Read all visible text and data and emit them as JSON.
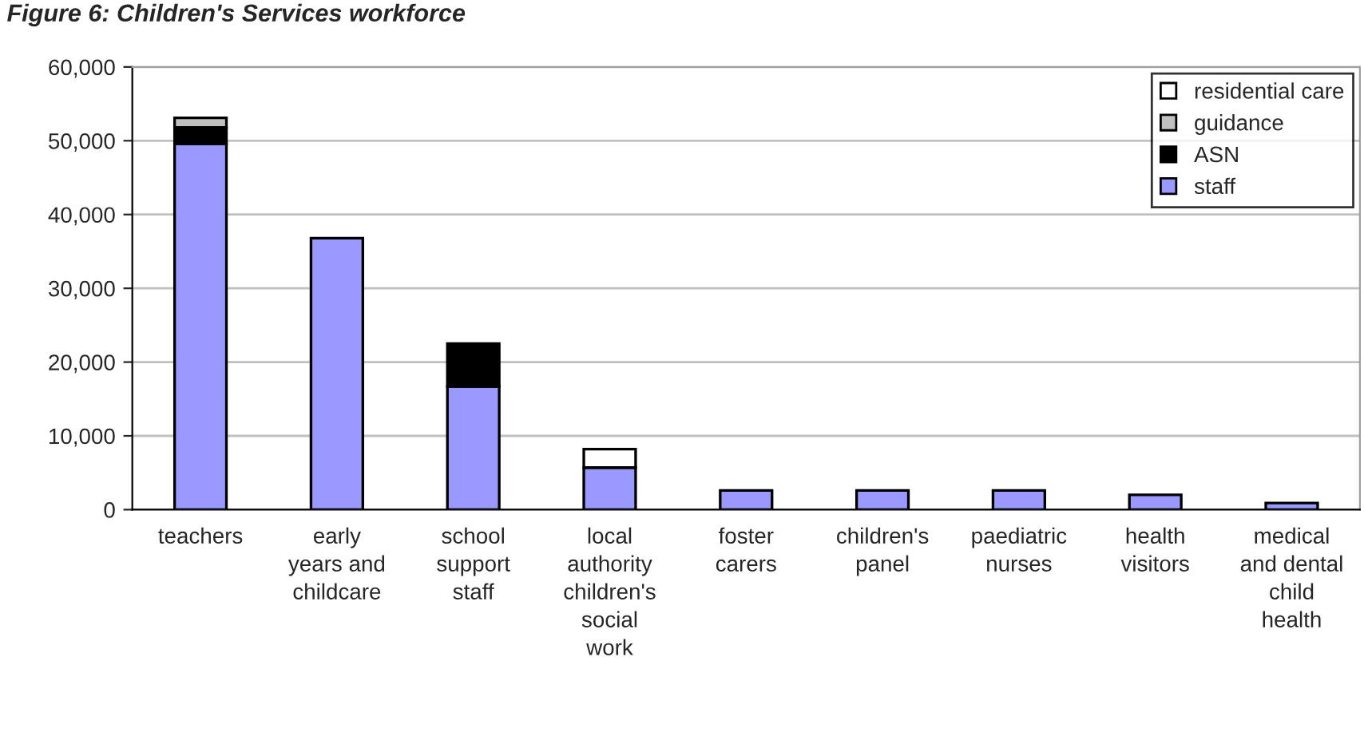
{
  "chart_data": {
    "type": "bar",
    "title": "Figure 6: Children's Services workforce",
    "categories": [
      "teachers",
      "early\nyears and\nchildcare",
      "school\nsupport\nstaff",
      "local\nauthority\nchildren's\nsocial\nwork",
      "foster\ncarers",
      "children's\npanel",
      "paediatric\nnurses",
      "health\nvisitors",
      "medical\nand dental\nchild\nhealth"
    ],
    "stacked": true,
    "series": [
      {
        "name": "staff",
        "color": "#9999ff",
        "values": [
          49600,
          36800,
          16700,
          5700,
          2600,
          2600,
          2600,
          2000,
          900
        ]
      },
      {
        "name": "ASN",
        "color": "#000000",
        "values": [
          2200,
          null,
          5800,
          null,
          null,
          null,
          null,
          null,
          null
        ]
      },
      {
        "name": "guidance",
        "color": "#c0c0c0",
        "values": [
          1300,
          null,
          null,
          null,
          null,
          null,
          null,
          null,
          null
        ]
      },
      {
        "name": "residential care",
        "color": "#ffffff",
        "values": [
          null,
          null,
          null,
          2500,
          null,
          null,
          null,
          null,
          null
        ]
      }
    ],
    "ylim": [
      0,
      60000
    ],
    "yticks": [
      {
        "value": 0,
        "label": "0"
      },
      {
        "value": 10000,
        "label": "10,000"
      },
      {
        "value": 20000,
        "label": "20,000"
      },
      {
        "value": 30000,
        "label": "30,000"
      },
      {
        "value": 40000,
        "label": "40,000"
      },
      {
        "value": 50000,
        "label": "50,000"
      },
      {
        "value": 60000,
        "label": "60,000"
      }
    ],
    "grid": "y",
    "legend": "top right"
  }
}
